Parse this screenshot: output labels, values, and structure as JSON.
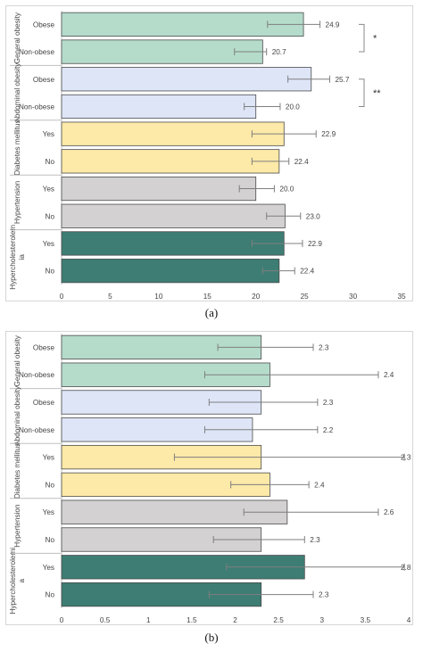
{
  "colors": {
    "general_obesity": "#b5dccb",
    "abdominal_obesity": "#dde5f7",
    "diabetes": "#fde9a8",
    "hypertension": "#d3d1d2",
    "hypercholesterolemia": "#3d7d74",
    "bar_stroke": "#4a4a4a",
    "error_bar": "#7f7f7f"
  },
  "chart_data": [
    {
      "type": "bar",
      "orientation": "horizontal",
      "panel_label": "(a)",
      "xlim": [
        0,
        35
      ],
      "xticks": [
        "0",
        "5",
        "10",
        "15",
        "20",
        "25",
        "30",
        "35"
      ],
      "grid": false,
      "groups": [
        {
          "label": "General obesity",
          "color_key": "general_obesity",
          "bars": [
            {
              "category": "Obese",
              "value": 24.9,
              "label": "24.9",
              "err_low": 21.2,
              "err_high": 26.6
            },
            {
              "category": "Non-obese",
              "value": 20.7,
              "label": "20.7",
              "err_low": 17.8,
              "err_high": 21.1
            }
          ]
        },
        {
          "label": "Abdominal obesity",
          "color_key": "abdominal_obesity",
          "bars": [
            {
              "category": "Obese",
              "value": 25.7,
              "label": "25.7",
              "err_low": 23.3,
              "err_high": 27.6
            },
            {
              "category": "Non-obese",
              "value": 20.0,
              "label": "20.0",
              "err_low": 18.8,
              "err_high": 22.5
            }
          ]
        },
        {
          "label": "Diabetes mellitus",
          "color_key": "diabetes",
          "bars": [
            {
              "category": "Yes",
              "value": 22.9,
              "label": "22.9",
              "err_low": 19.6,
              "err_high": 26.2
            },
            {
              "category": "No",
              "value": 22.4,
              "label": "22.4",
              "err_low": 19.6,
              "err_high": 23.4
            }
          ]
        },
        {
          "label": "Hypertension",
          "color_key": "hypertension",
          "bars": [
            {
              "category": "Yes",
              "value": 20.0,
              "label": "20.0",
              "err_low": 18.3,
              "err_high": 21.9
            },
            {
              "category": "No",
              "value": 23.0,
              "label": "23.0",
              "err_low": 21.1,
              "err_high": 24.6
            }
          ]
        },
        {
          "label": "Hypercholesterolemia",
          "label_lines": [
            "Hypercholesterolem",
            "ia"
          ],
          "color_key": "hypercholesterolemia",
          "bars": [
            {
              "category": "Yes",
              "value": 22.9,
              "label": "22.9",
              "err_low": 19.6,
              "err_high": 24.8
            },
            {
              "category": "No",
              "value": 22.4,
              "label": "22.4",
              "err_low": 20.7,
              "err_high": 24.0
            }
          ]
        }
      ],
      "significance": [
        {
          "label": "*",
          "group": 0
        },
        {
          "label": "**",
          "group": 1
        }
      ]
    },
    {
      "type": "bar",
      "orientation": "horizontal",
      "panel_label": "(b)",
      "xlim": [
        0,
        4
      ],
      "xticks": [
        "0",
        "0.5",
        "1",
        "1.5",
        "2",
        "2.5",
        "3",
        "3.5",
        "4"
      ],
      "grid": false,
      "groups": [
        {
          "label": "General obesity",
          "color_key": "general_obesity",
          "bars": [
            {
              "category": "Obese",
              "value": 2.3,
              "label": "2.3",
              "err_low": 1.8,
              "err_high": 2.9
            },
            {
              "category": "Non-obese",
              "value": 2.4,
              "label": "2.4",
              "err_low": 1.65,
              "err_high": 3.65
            }
          ]
        },
        {
          "label": "Abdominal obesity",
          "color_key": "abdominal_obesity",
          "bars": [
            {
              "category": "Obese",
              "value": 2.3,
              "label": "2.3",
              "err_low": 1.7,
              "err_high": 2.95
            },
            {
              "category": "Non-obese",
              "value": 2.2,
              "label": "2.2",
              "err_low": 1.65,
              "err_high": 2.95
            }
          ]
        },
        {
          "label": "Diabetes mellitus",
          "color_key": "diabetes",
          "bars": [
            {
              "category": "Yes",
              "value": 2.3,
              "label": "2.3",
              "err_low": 1.3,
              "err_high": 3.95
            },
            {
              "category": "No",
              "value": 2.4,
              "label": "2.4",
              "err_low": 1.95,
              "err_high": 2.85
            }
          ]
        },
        {
          "label": "Hypertension",
          "color_key": "hypertension",
          "bars": [
            {
              "category": "Yes",
              "value": 2.6,
              "label": "2.6",
              "err_low": 2.1,
              "err_high": 3.65
            },
            {
              "category": "No",
              "value": 2.3,
              "label": "2.3",
              "err_low": 1.75,
              "err_high": 2.8
            }
          ]
        },
        {
          "label": "Hypercholesterolemia",
          "label_lines": [
            "Hypercholesterolemi",
            "a"
          ],
          "color_key": "hypercholesterolemia",
          "bars": [
            {
              "category": "Yes",
              "value": 2.8,
              "label": "2.8",
              "err_low": 1.9,
              "err_high": 3.95
            },
            {
              "category": "No",
              "value": 2.3,
              "label": "2.3",
              "err_low": 1.7,
              "err_high": 2.9
            }
          ]
        }
      ],
      "significance": []
    }
  ]
}
